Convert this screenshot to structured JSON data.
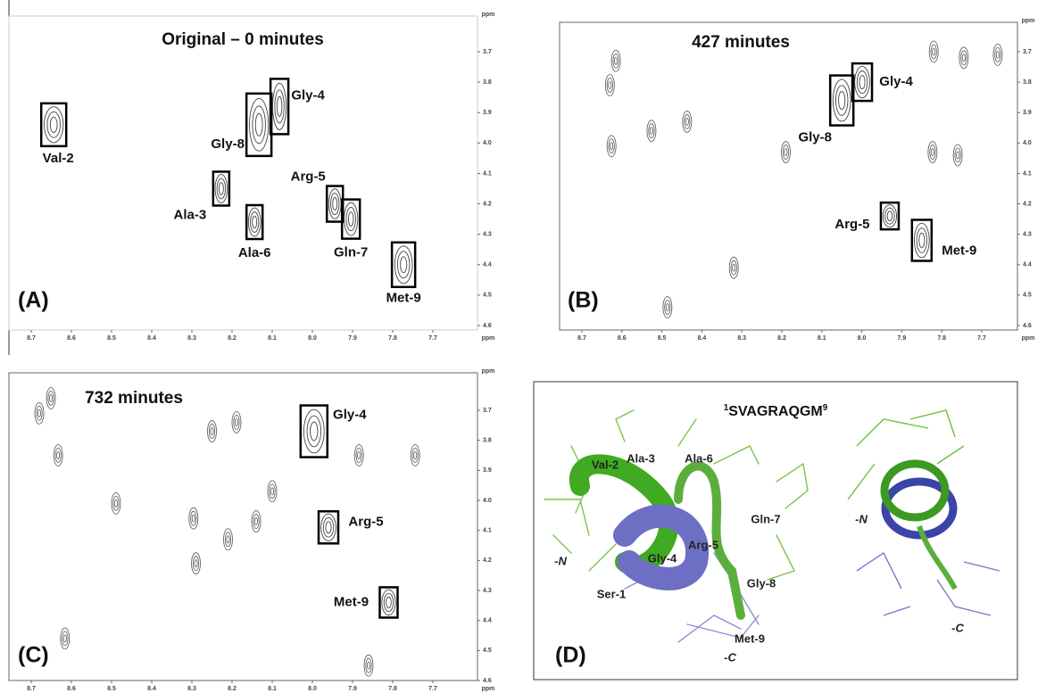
{
  "axes": {
    "x_ticks": [
      8.7,
      8.6,
      8.5,
      8.4,
      8.3,
      8.2,
      8.1,
      {
        "value": 8,
        "label": "8.0"
      },
      7.9,
      7.8,
      7.7
    ],
    "y_ticks": [
      3.7,
      3.8,
      3.9,
      {
        "value": 4,
        "label": "4.0"
      },
      4.1,
      4.2,
      4.3,
      4.4,
      4.5,
      4.6
    ],
    "unit": "ppm"
  },
  "panels": [
    {
      "label": "(A)",
      "title": "Original – 0 minutes",
      "peaks": [
        {
          "label": "Val-2",
          "x": 8.644,
          "y": 3.94
        },
        {
          "label": "Gly-8",
          "x": 8.133,
          "y": 3.94
        },
        {
          "label": "Gly-4",
          "x": 8.082,
          "y": 3.88
        },
        {
          "label": "Ala-3",
          "x": 8.227,
          "y": 4.15
        },
        {
          "label": "Ala-6",
          "x": 8.144,
          "y": 4.26
        },
        {
          "label": "Arg-5",
          "x": 7.944,
          "y": 4.2
        },
        {
          "label": "Gln-7",
          "x": 7.904,
          "y": 4.25
        },
        {
          "label": "Met-9",
          "x": 7.773,
          "y": 4.4
        }
      ],
      "contours": []
    },
    {
      "label": "(B)",
      "title": "427 minutes",
      "peaks": [
        {
          "label": "Gly-8",
          "x": 8.05,
          "y": 3.86
        },
        {
          "label": "Gly-4",
          "x": 7.999,
          "y": 3.8
        },
        {
          "label": "Arg-5",
          "x": 7.93,
          "y": 4.24
        },
        {
          "label": "Met-9",
          "x": 7.85,
          "y": 4.32
        }
      ],
      "contours": [
        {
          "x": 8.615,
          "y": 3.73
        },
        {
          "x": 8.63,
          "y": 3.81
        },
        {
          "x": 8.526,
          "y": 3.96
        },
        {
          "x": 8.437,
          "y": 3.93
        },
        {
          "x": 8.626,
          "y": 4.01
        },
        {
          "x": 8.19,
          "y": 4.03
        },
        {
          "x": 7.823,
          "y": 4.03
        },
        {
          "x": 7.76,
          "y": 4.04
        },
        {
          "x": 7.745,
          "y": 3.72
        },
        {
          "x": 7.66,
          "y": 3.71
        },
        {
          "x": 7.82,
          "y": 3.7
        },
        {
          "x": 8.32,
          "y": 4.41
        },
        {
          "x": 8.486,
          "y": 4.54
        }
      ]
    },
    {
      "label": "(C)",
      "title": "732 minutes",
      "peaks": [
        {
          "label": "Gly-4",
          "x": 7.996,
          "y": 3.77
        },
        {
          "label": "Arg-5",
          "x": 7.96,
          "y": 4.09
        },
        {
          "label": "Met-9",
          "x": 7.81,
          "y": 4.34
        }
      ],
      "contours": [
        {
          "x": 8.651,
          "y": 3.66
        },
        {
          "x": 8.68,
          "y": 3.71
        },
        {
          "x": 8.633,
          "y": 3.85
        },
        {
          "x": 8.489,
          "y": 4.01
        },
        {
          "x": 8.25,
          "y": 3.77
        },
        {
          "x": 8.189,
          "y": 3.74
        },
        {
          "x": 8.1,
          "y": 3.97
        },
        {
          "x": 8.296,
          "y": 4.06
        },
        {
          "x": 8.21,
          "y": 4.13
        },
        {
          "x": 8.14,
          "y": 4.07
        },
        {
          "x": 8.29,
          "y": 4.21
        },
        {
          "x": 7.884,
          "y": 3.85
        },
        {
          "x": 7.744,
          "y": 3.85
        },
        {
          "x": 8.616,
          "y": 4.46
        },
        {
          "x": 7.86,
          "y": 4.55
        }
      ]
    }
  ],
  "structure": {
    "label": "(D)",
    "title": {
      "start": "1",
      "sequence": "SVAGRAQGM",
      "end": "9"
    },
    "labels": [
      "Val-2",
      "Ala-3",
      "Ala-6",
      "Gln-7",
      "Arg-5",
      "Gly-4",
      "-N",
      "Ser-1",
      "Gly-8",
      "Met-9",
      "-C",
      "-N",
      "-C"
    ]
  }
}
